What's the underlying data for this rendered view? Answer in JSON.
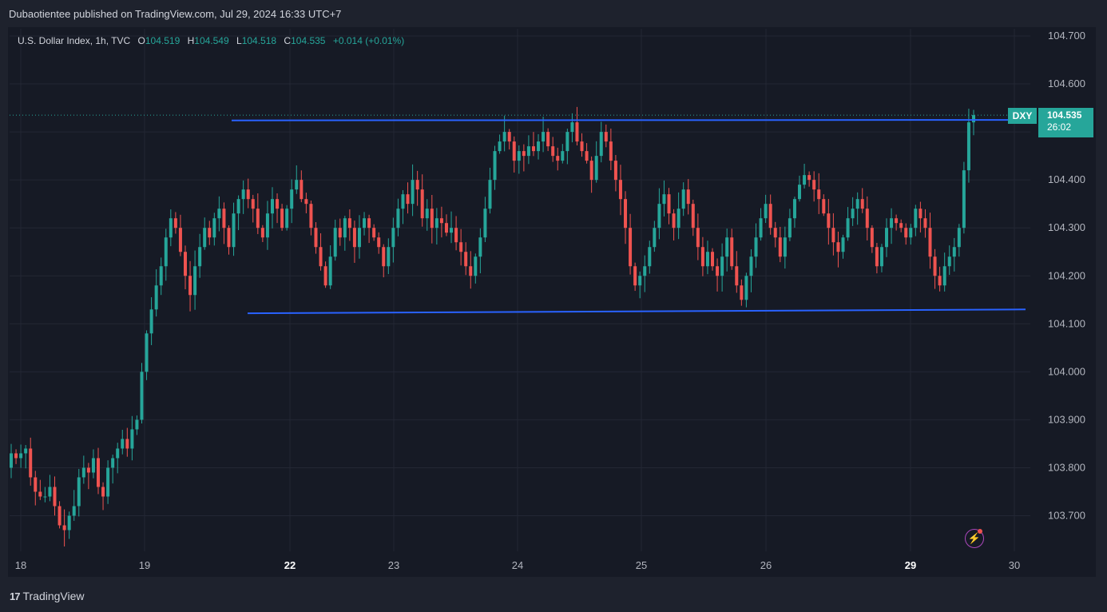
{
  "header": {
    "publisher": "Dubaotientee published on TradingView.com, Jul 29, 2024 16:33 UTC+7"
  },
  "legend": {
    "symbol": "U.S. Dollar Index, 1h, TVC",
    "o_label": "O",
    "o_value": "104.519",
    "h_label": "H",
    "h_value": "104.549",
    "l_label": "L",
    "l_value": "104.518",
    "c_label": "C",
    "c_value": "104.535",
    "change": "+0.014 (+0.01%)"
  },
  "price_tag": {
    "ticker": "DXY",
    "price": "104.535",
    "countdown": "26:02"
  },
  "footer": {
    "brand": "TradingView"
  },
  "colors": {
    "up": "#26a69a",
    "down": "#ef5350",
    "trendline": "#2962ff",
    "background": "#161a25",
    "grid": "#232734"
  },
  "chart_data": {
    "type": "candlestick",
    "title": "U.S. Dollar Index, 1h, TVC",
    "ylim": [
      103.63,
      104.77
    ],
    "y_ticks": [
      "104.700",
      "104.600",
      "104.500",
      "104.400",
      "104.300",
      "104.200",
      "104.100",
      "104.000",
      "103.900",
      "103.800",
      "103.700"
    ],
    "x_ticks": [
      {
        "label": "18",
        "bold": false
      },
      {
        "label": "19",
        "bold": false
      },
      {
        "label": "22",
        "bold": true
      },
      {
        "label": "23",
        "bold": false
      },
      {
        "label": "24",
        "bold": false
      },
      {
        "label": "25",
        "bold": false
      },
      {
        "label": "26",
        "bold": false
      },
      {
        "label": "29",
        "bold": true
      },
      {
        "label": "30",
        "bold": false
      }
    ],
    "last_price": 104.535,
    "resistance_line": [
      104.524,
      104.525
    ],
    "support_line": [
      104.122,
      104.13
    ],
    "close_path": [
      103.83,
      103.82,
      103.83,
      103.84,
      103.78,
      103.75,
      103.74,
      103.74,
      103.76,
      103.72,
      103.68,
      103.67,
      103.7,
      103.72,
      103.78,
      103.8,
      103.79,
      103.82,
      103.76,
      103.74,
      103.8,
      103.82,
      103.84,
      103.86,
      103.84,
      103.88,
      103.9,
      104.0,
      104.08,
      104.13,
      104.18,
      104.22,
      104.28,
      104.32,
      104.3,
      104.25,
      104.2,
      104.16,
      104.22,
      104.26,
      104.3,
      104.28,
      104.32,
      104.34,
      104.3,
      104.26,
      104.33,
      104.36,
      104.38,
      104.36,
      104.34,
      104.3,
      104.28,
      104.33,
      104.36,
      104.34,
      104.3,
      104.34,
      104.38,
      104.4,
      104.36,
      104.35,
      104.3,
      104.26,
      104.22,
      104.18,
      104.24,
      104.3,
      104.28,
      104.32,
      104.3,
      104.26,
      104.3,
      104.32,
      104.3,
      104.28,
      104.26,
      104.22,
      104.26,
      104.3,
      104.34,
      104.37,
      104.35,
      104.4,
      104.38,
      104.32,
      104.34,
      104.3,
      104.32,
      104.31,
      104.29,
      104.3,
      104.27,
      104.25,
      104.22,
      104.2,
      104.24,
      104.28,
      104.34,
      104.4,
      104.46,
      104.48,
      104.5,
      104.48,
      104.44,
      104.46,
      104.45,
      104.47,
      104.46,
      104.48,
      104.5,
      104.47,
      104.45,
      104.44,
      104.46,
      104.5,
      104.52,
      104.48,
      104.46,
      104.44,
      104.4,
      104.45,
      104.5,
      104.48,
      104.44,
      104.4,
      104.36,
      104.3,
      104.22,
      104.18,
      104.2,
      104.22,
      104.26,
      104.3,
      104.35,
      104.37,
      104.33,
      104.3,
      104.34,
      104.38,
      104.35,
      104.3,
      104.26,
      104.22,
      104.25,
      104.22,
      104.2,
      104.24,
      104.28,
      104.22,
      104.18,
      104.15,
      104.2,
      104.24,
      104.28,
      104.32,
      104.35,
      104.3,
      104.28,
      104.24,
      104.28,
      104.32,
      104.36,
      104.39,
      104.41,
      104.4,
      104.38,
      104.36,
      104.33,
      104.3,
      104.27,
      104.25,
      104.28,
      104.32,
      104.34,
      104.36,
      104.34,
      104.3,
      104.26,
      104.22,
      104.26,
      104.3,
      104.32,
      104.31,
      104.3,
      104.28,
      104.3,
      104.34,
      104.32,
      104.3,
      104.24,
      104.2,
      104.18,
      104.22,
      104.24,
      104.26,
      104.3,
      104.42,
      104.52,
      104.535
    ]
  }
}
